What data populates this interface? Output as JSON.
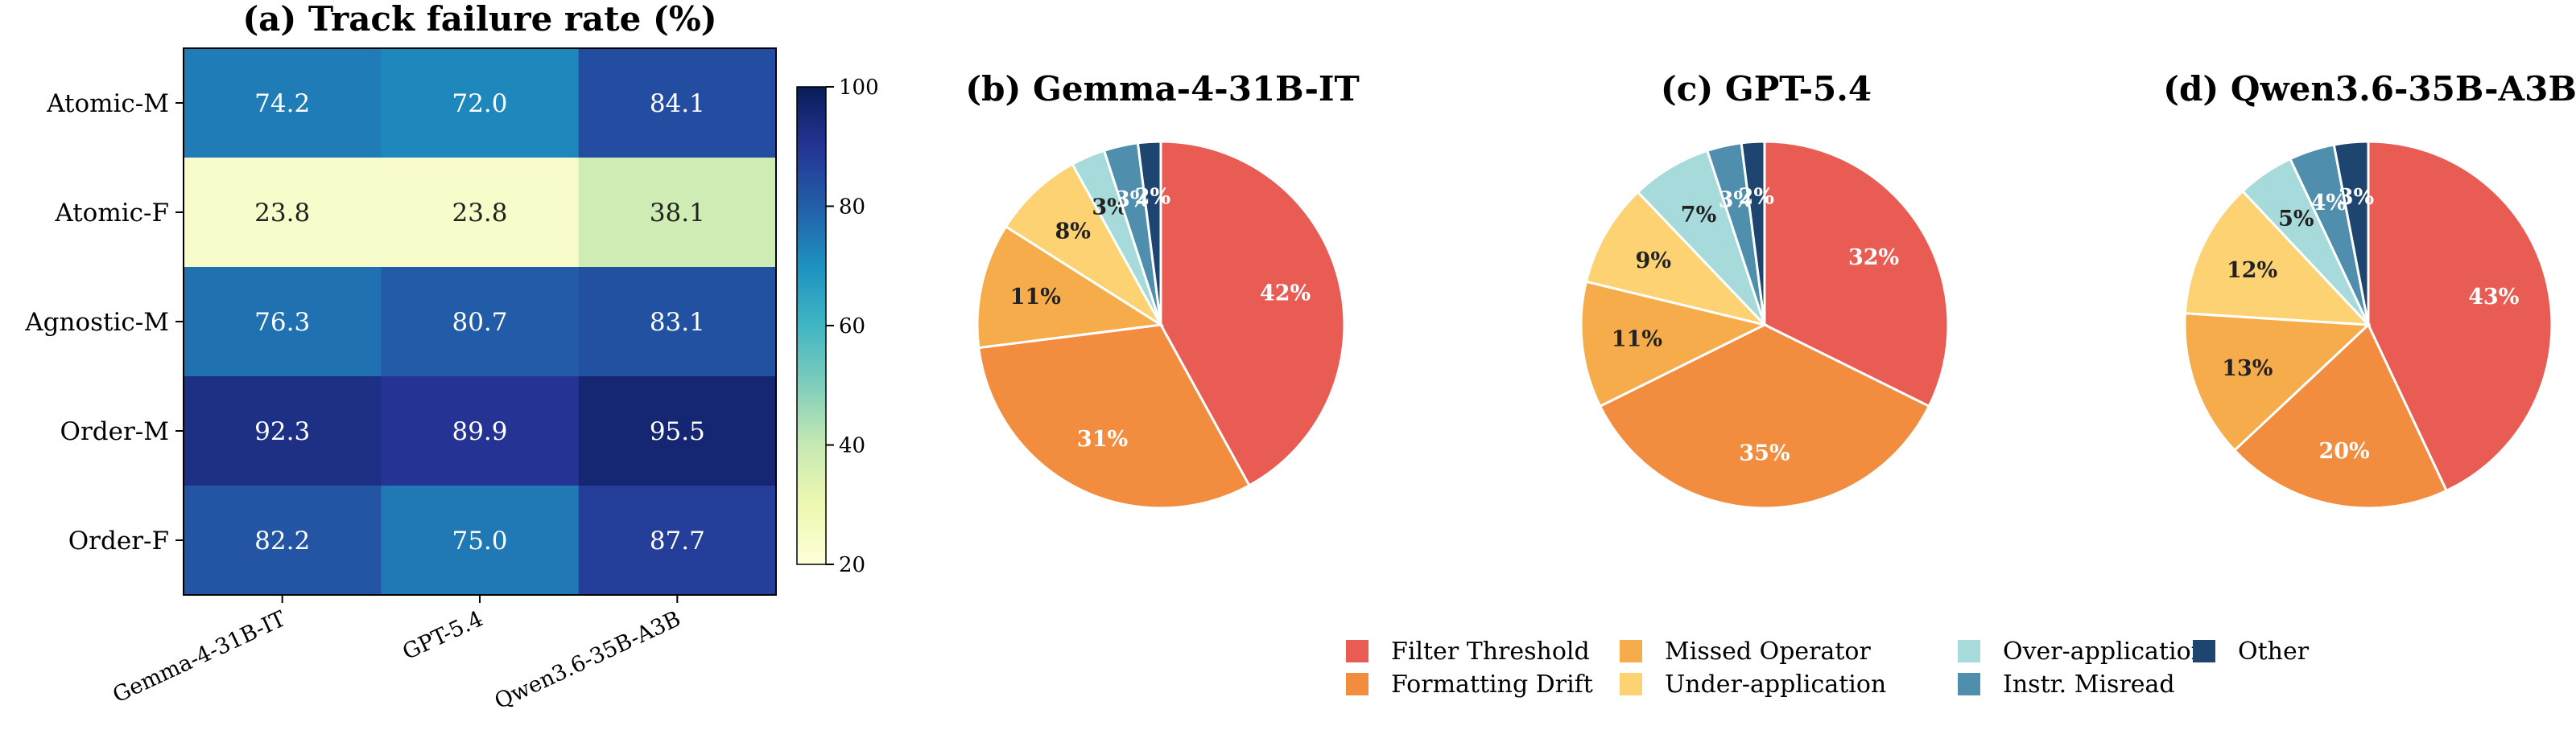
{
  "chart_data": [
    {
      "type": "heatmap",
      "title": "(a) Track failure rate (%)",
      "rows": [
        "Atomic-M",
        "Atomic-F",
        "Agnostic-M",
        "Order-M",
        "Order-F"
      ],
      "columns": [
        "Gemma-4-31B-IT",
        "GPT-5.4",
        "Qwen3.6-35B-A3B"
      ],
      "values": [
        [
          74.2,
          72.0,
          84.1
        ],
        [
          23.8,
          23.8,
          38.1
        ],
        [
          76.3,
          80.7,
          83.1
        ],
        [
          92.3,
          89.9,
          95.5
        ],
        [
          82.2,
          75.0,
          87.7
        ]
      ],
      "colorbar": {
        "min": 20,
        "max": 100,
        "ticks": [
          "20",
          "40",
          "60",
          "80",
          "100"
        ],
        "colormap": "YlGnBu"
      }
    },
    {
      "type": "pie",
      "title": "(b) Gemma-4-31B-IT",
      "categories": [
        "Filter Threshold",
        "Formatting Drift",
        "Missed Operator",
        "Under-application",
        "Over-application",
        "Instr. Misread",
        "Other"
      ],
      "values": [
        42,
        31,
        11,
        8,
        3,
        3,
        2
      ],
      "labels": [
        "42%",
        "31%",
        "11%",
        "8%",
        "3%",
        "3%",
        "2%"
      ]
    },
    {
      "type": "pie",
      "title": "(c) GPT-5.4",
      "categories": [
        "Filter Threshold",
        "Formatting Drift",
        "Missed Operator",
        "Under-application",
        "Over-application",
        "Instr. Misread",
        "Other"
      ],
      "values": [
        32,
        35,
        11,
        9,
        7,
        3,
        2
      ],
      "labels": [
        "32%",
        "35%",
        "11%",
        "9%",
        "7%",
        "3%",
        "2%"
      ]
    },
    {
      "type": "pie",
      "title": "(d) Qwen3.6-35B-A3B",
      "categories": [
        "Filter Threshold",
        "Formatting Drift",
        "Missed Operator",
        "Under-application",
        "Over-application",
        "Instr. Misread",
        "Other"
      ],
      "values": [
        43,
        20,
        13,
        12,
        5,
        4,
        3
      ],
      "labels": [
        "43%",
        "20%",
        "13%",
        "12%",
        "5%",
        "4%",
        "3%"
      ]
    }
  ],
  "legend": {
    "items": [
      {
        "label": "Filter Threshold",
        "color": "#e85c53"
      },
      {
        "label": "Formatting Drift",
        "color": "#f28c3f"
      },
      {
        "label": "Missed Operator",
        "color": "#f6ac4b"
      },
      {
        "label": "Under-application",
        "color": "#fdd272"
      },
      {
        "label": "Over-application",
        "color": "#a7dadb"
      },
      {
        "label": "Instr. Misread",
        "color": "#4f8fad"
      },
      {
        "label": "Other",
        "color": "#1e4570"
      }
    ]
  }
}
